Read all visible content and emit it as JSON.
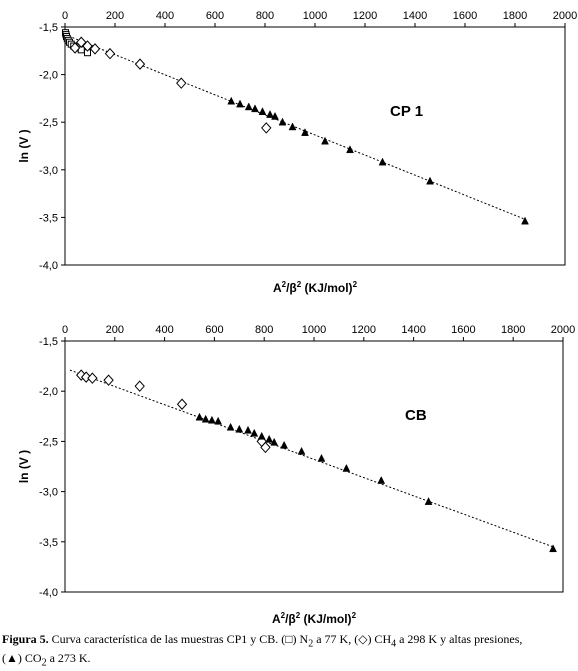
{
  "chart_data": [
    {
      "type": "scatter",
      "title": "",
      "annotation": "CP 1",
      "xlabel": {
        "a": "A",
        "a_exp": "2",
        "slash_beta": "/β",
        "b_exp": "2",
        "units": "  (KJ/mol)",
        "units_exp": "2"
      },
      "ylabel": "ln (V )",
      "xlim": [
        0,
        2000
      ],
      "ylim": [
        -4.0,
        -1.5
      ],
      "x_ticks": [
        "0",
        "200",
        "400",
        "600",
        "800",
        "1000",
        "1200",
        "1400",
        "1600",
        "1800",
        "2000"
      ],
      "y_ticks": [
        "-1,5",
        "-2,0",
        "-2,5",
        "-3,0",
        "-3,5",
        "-4,0"
      ],
      "x_axis_position": "top",
      "trendline": {
        "x": [
          0,
          1840
        ],
        "y": [
          -1.58,
          -3.52
        ]
      },
      "series": [
        {
          "marker": "square",
          "x": [
            2,
            4,
            6,
            9,
            13,
            18,
            25,
            35,
            48,
            65,
            90
          ],
          "y": [
            -1.56,
            -1.58,
            -1.6,
            -1.62,
            -1.64,
            -1.66,
            -1.68,
            -1.7,
            -1.72,
            -1.74,
            -1.77
          ]
        },
        {
          "marker": "diamond",
          "x": [
            40,
            65,
            90,
            120,
            180,
            300,
            465,
            805
          ],
          "y": [
            -1.72,
            -1.66,
            -1.7,
            -1.73,
            -1.78,
            -1.89,
            -2.09,
            -2.56
          ]
        },
        {
          "marker": "triangle",
          "x": [
            665,
            700,
            735,
            760,
            790,
            820,
            840,
            870,
            910,
            960,
            1040,
            1140,
            1270,
            1460,
            1840
          ],
          "y": [
            -2.28,
            -2.31,
            -2.34,
            -2.36,
            -2.39,
            -2.42,
            -2.44,
            -2.5,
            -2.55,
            -2.61,
            -2.7,
            -2.79,
            -2.92,
            -3.12,
            -3.54
          ]
        }
      ]
    },
    {
      "type": "scatter",
      "title": "",
      "annotation": "CB",
      "xlabel": {
        "a": "A",
        "a_exp": "2",
        "slash_beta": "/β",
        "b_exp": "2",
        "units": "  (KJ/mol)",
        "units_exp": "2"
      },
      "ylabel": "ln (V )",
      "xlim": [
        0,
        2000
      ],
      "ylim": [
        -4.0,
        -1.5
      ],
      "x_ticks": [
        "0",
        "200",
        "400",
        "600",
        "800",
        "1000",
        "1200",
        "1400",
        "1600",
        "1800",
        "2000"
      ],
      "y_ticks": [
        "-1,5",
        "-2,0",
        "-2,5",
        "-3,0",
        "-3,5",
        "-4,0"
      ],
      "x_axis_position": "top",
      "trendline": {
        "x": [
          20,
          1960
        ],
        "y": [
          -1.79,
          -3.55
        ]
      },
      "series": [
        {
          "marker": "diamond",
          "x": [
            65,
            85,
            110,
            175,
            300,
            470,
            790,
            805
          ],
          "y": [
            -1.84,
            -1.86,
            -1.87,
            -1.89,
            -1.95,
            -2.13,
            -2.5,
            -2.56
          ]
        },
        {
          "marker": "triangle",
          "x": [
            540,
            565,
            590,
            615,
            665,
            700,
            735,
            760,
            790,
            820,
            840,
            880,
            950,
            1030,
            1130,
            1270,
            1460,
            1960
          ],
          "y": [
            -2.26,
            -2.28,
            -2.29,
            -2.3,
            -2.36,
            -2.38,
            -2.39,
            -2.42,
            -2.45,
            -2.48,
            -2.51,
            -2.54,
            -2.6,
            -2.67,
            -2.77,
            -2.89,
            -3.1,
            -3.57
          ]
        }
      ]
    }
  ],
  "caption": {
    "label": "Figura 5.",
    "line1_a": " Curva característica de las muestras CP1 y CB. (",
    "sym_square": "□",
    "line1_b": ") N",
    "sub_2a": "2",
    "line1_c": " a 77 K, (",
    "sym_diamond": "◇",
    "line1_d": ") CH",
    "sub_4": "4",
    "line1_e": " a 298 K y altas presiones,",
    "line2_a": "(",
    "sym_triangle": "▲",
    "line2_b": ") CO",
    "sub_2b": "2",
    "line2_c": " a 273 K."
  }
}
